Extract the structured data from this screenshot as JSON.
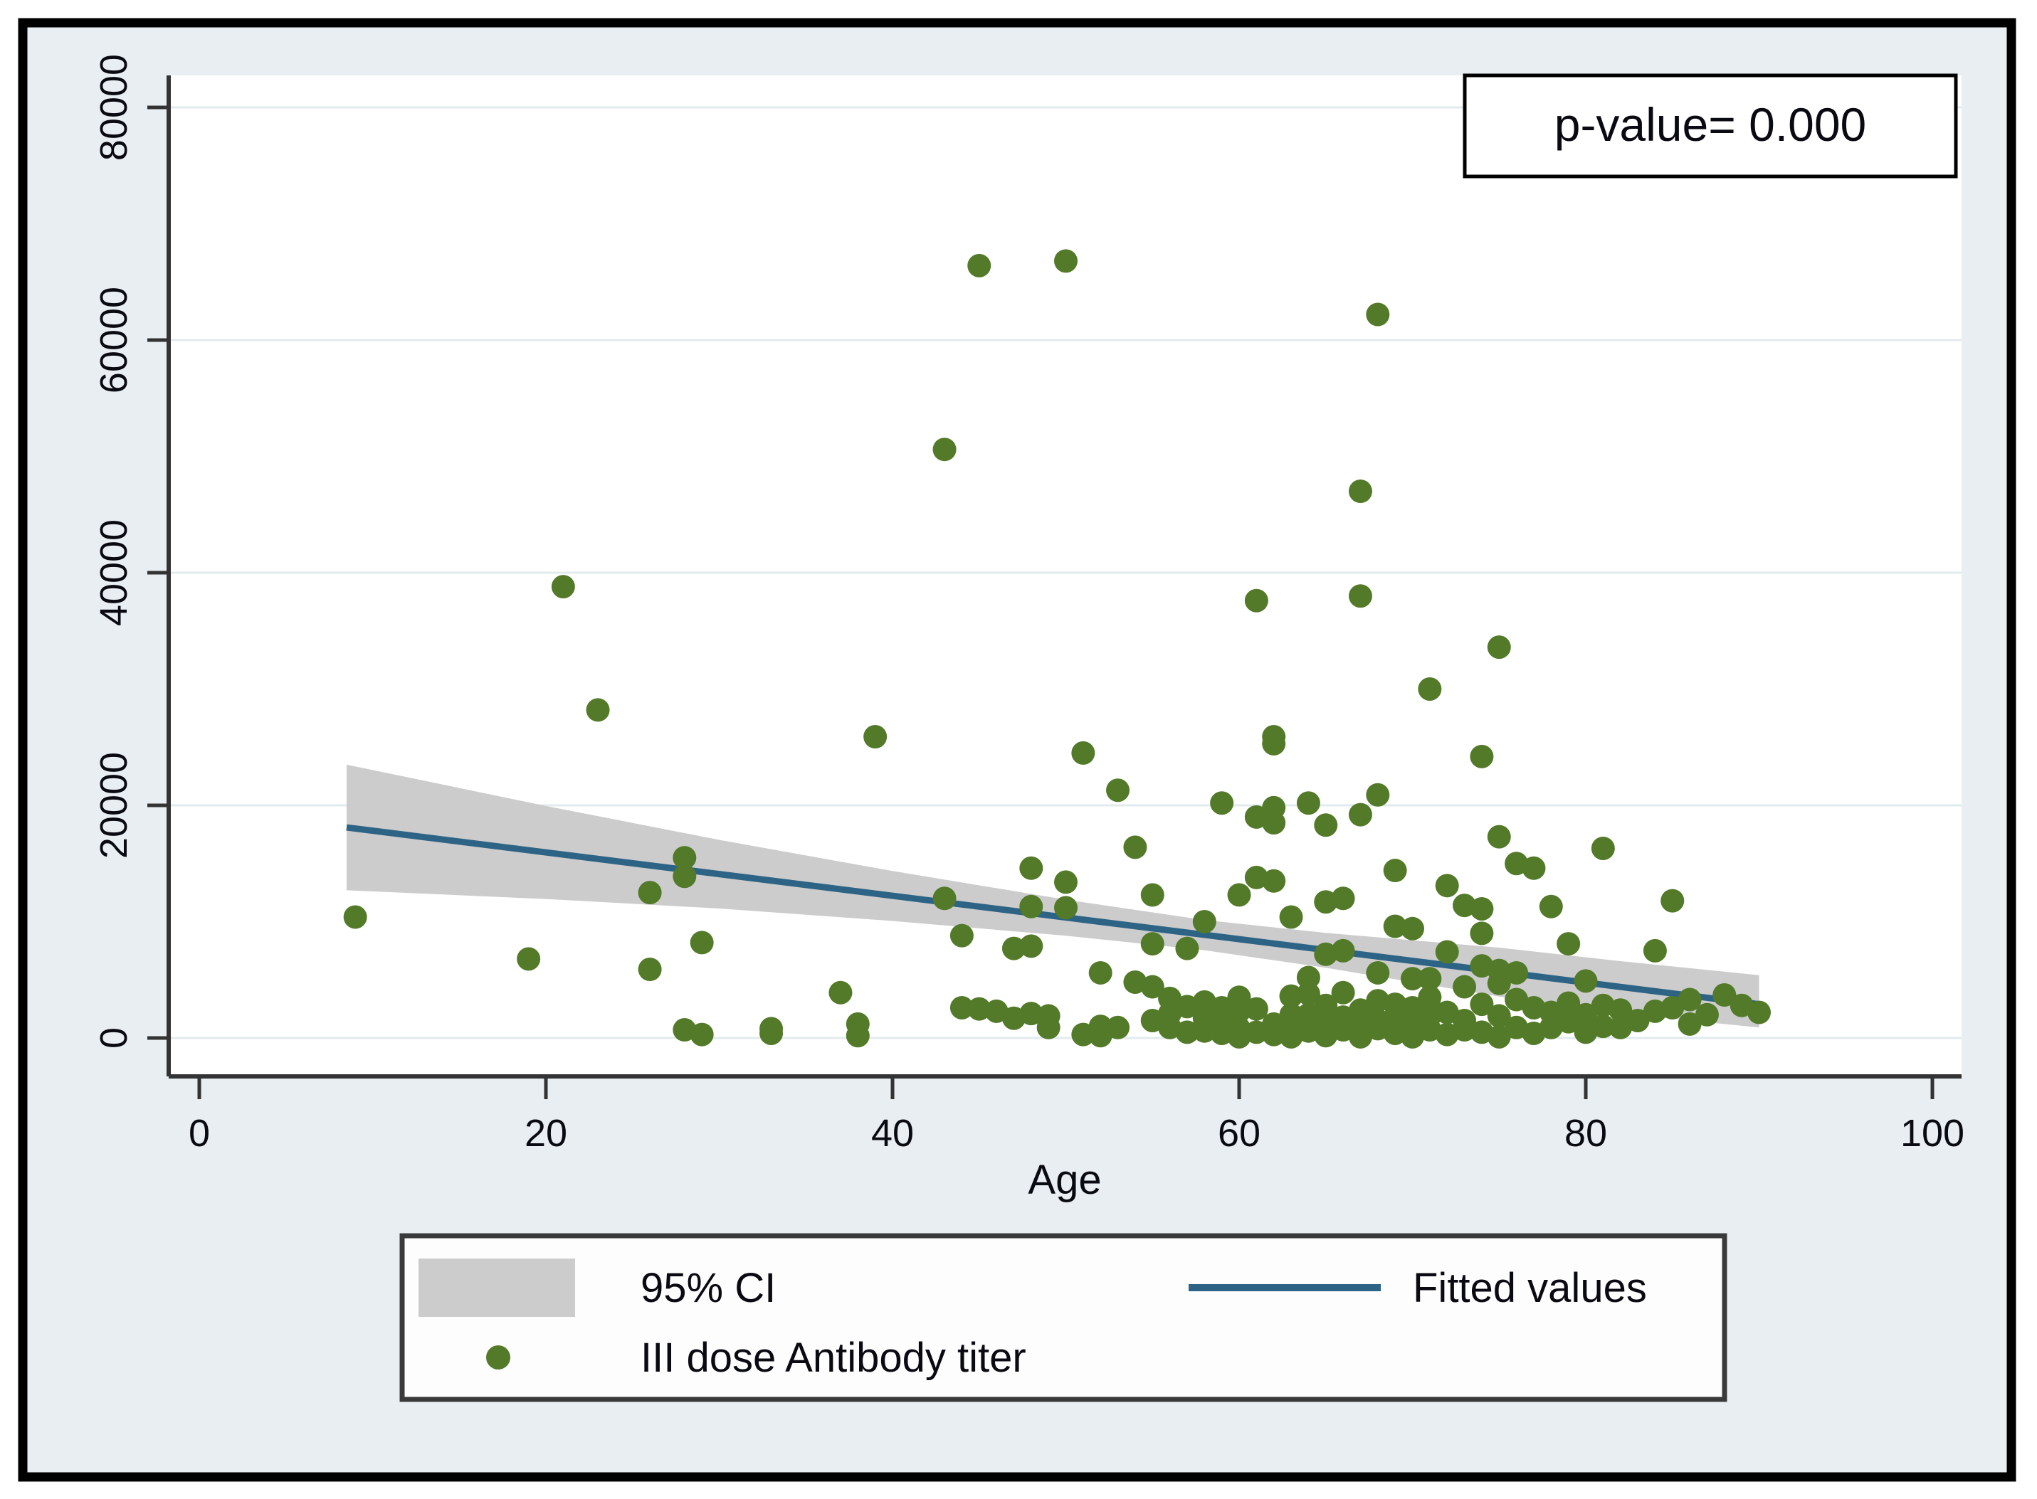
{
  "figure": {
    "p_value_label": "p-value= 0.000",
    "x_axis": {
      "label": "Age",
      "ticks": [
        0,
        20,
        40,
        60,
        80,
        100
      ]
    },
    "y_axis": {
      "ticks": [
        0,
        20000,
        40000,
        60000,
        80000
      ]
    },
    "legend": {
      "ci_label": "95% CI",
      "fit_label": "Fitted values",
      "scatter_label": "III dose Antibody titer"
    },
    "colors": {
      "background": "#e8eef1",
      "plot_background": "#ffffff",
      "gridline": "#e2ebee",
      "axis": "#333333",
      "frame": "#000000",
      "dot": "#527a28",
      "fit_line": "#2d6384",
      "ci_band": "#cccccc",
      "text": "#0a0a12",
      "legend_border": "#3a3a3a"
    }
  },
  "chart_data": {
    "type": "scatter",
    "title": "",
    "xlabel": "Age",
    "ylabel": "",
    "xlim": [
      -1.8,
      102.2
    ],
    "ylim": [
      -3300,
      83000
    ],
    "grid": true,
    "legend_position": "bottom",
    "annotations": [
      {
        "text": "p-value= 0.000",
        "position": "top-right"
      }
    ],
    "series": [
      {
        "name": "III dose Antibody titer",
        "type": "scatter",
        "points": [
          [
            9,
            10400
          ],
          [
            19,
            6800
          ],
          [
            21,
            38800
          ],
          [
            23,
            28200
          ],
          [
            26,
            12500
          ],
          [
            26,
            5900
          ],
          [
            28,
            15500
          ],
          [
            28,
            13900
          ],
          [
            29,
            8200
          ],
          [
            28,
            700
          ],
          [
            29,
            300
          ],
          [
            33,
            800
          ],
          [
            33,
            400
          ],
          [
            37,
            3900
          ],
          [
            38,
            1200
          ],
          [
            38,
            200
          ],
          [
            39,
            25900
          ],
          [
            43,
            50600
          ],
          [
            43,
            12000
          ],
          [
            44,
            8800
          ],
          [
            44,
            2600
          ],
          [
            45,
            66400
          ],
          [
            45,
            2500
          ],
          [
            46,
            2300
          ],
          [
            47,
            7700
          ],
          [
            47,
            1700
          ],
          [
            48,
            14600
          ],
          [
            48,
            11300
          ],
          [
            48,
            7900
          ],
          [
            48,
            2100
          ],
          [
            49,
            1900
          ],
          [
            49,
            900
          ],
          [
            50,
            66800
          ],
          [
            50,
            13400
          ],
          [
            50,
            11200
          ],
          [
            51,
            24500
          ],
          [
            51,
            300
          ],
          [
            52,
            5600
          ],
          [
            52,
            1000
          ],
          [
            52,
            200
          ],
          [
            53,
            21300
          ],
          [
            53,
            900
          ],
          [
            54,
            16400
          ],
          [
            54,
            4800
          ],
          [
            55,
            12300
          ],
          [
            55,
            8100
          ],
          [
            55,
            4400
          ],
          [
            55,
            1500
          ],
          [
            56,
            3400
          ],
          [
            56,
            2100
          ],
          [
            56,
            900
          ],
          [
            57,
            7700
          ],
          [
            57,
            2700
          ],
          [
            57,
            500
          ],
          [
            58,
            10000
          ],
          [
            58,
            3100
          ],
          [
            58,
            1700
          ],
          [
            58,
            600
          ],
          [
            59,
            20200
          ],
          [
            59,
            2600
          ],
          [
            59,
            1000
          ],
          [
            59,
            400
          ],
          [
            60,
            12300
          ],
          [
            60,
            3500
          ],
          [
            60,
            2300
          ],
          [
            60,
            800
          ],
          [
            60,
            100
          ],
          [
            61,
            37600
          ],
          [
            61,
            19000
          ],
          [
            61,
            13800
          ],
          [
            61,
            2500
          ],
          [
            61,
            500
          ],
          [
            62,
            25900
          ],
          [
            62,
            25300
          ],
          [
            62,
            19800
          ],
          [
            62,
            18500
          ],
          [
            62,
            13500
          ],
          [
            62,
            1200
          ],
          [
            62,
            300
          ],
          [
            63,
            10400
          ],
          [
            63,
            3600
          ],
          [
            63,
            2000
          ],
          [
            63,
            900
          ],
          [
            63,
            100
          ],
          [
            64,
            20200
          ],
          [
            64,
            5200
          ],
          [
            64,
            3800
          ],
          [
            64,
            2000
          ],
          [
            64,
            600
          ],
          [
            65,
            18300
          ],
          [
            65,
            11700
          ],
          [
            65,
            7200
          ],
          [
            65,
            2800
          ],
          [
            65,
            1300
          ],
          [
            65,
            200
          ],
          [
            66,
            12000
          ],
          [
            66,
            7500
          ],
          [
            66,
            3900
          ],
          [
            66,
            1800
          ],
          [
            66,
            700
          ],
          [
            67,
            47000
          ],
          [
            67,
            38000
          ],
          [
            67,
            19200
          ],
          [
            67,
            2400
          ],
          [
            67,
            1100
          ],
          [
            67,
            100
          ],
          [
            68,
            62200
          ],
          [
            68,
            20900
          ],
          [
            68,
            5600
          ],
          [
            68,
            3200
          ],
          [
            68,
            1500
          ],
          [
            68,
            800
          ],
          [
            69,
            14400
          ],
          [
            69,
            9600
          ],
          [
            69,
            2900
          ],
          [
            69,
            1800
          ],
          [
            69,
            400
          ],
          [
            70,
            9400
          ],
          [
            70,
            5100
          ],
          [
            70,
            2600
          ],
          [
            70,
            1000
          ],
          [
            70,
            100
          ],
          [
            71,
            30000
          ],
          [
            71,
            5100
          ],
          [
            71,
            3500
          ],
          [
            71,
            1900
          ],
          [
            71,
            700
          ],
          [
            72,
            13100
          ],
          [
            72,
            7400
          ],
          [
            72,
            2200
          ],
          [
            72,
            300
          ],
          [
            73,
            11400
          ],
          [
            73,
            4400
          ],
          [
            73,
            1500
          ],
          [
            73,
            700
          ],
          [
            74,
            24200
          ],
          [
            74,
            11100
          ],
          [
            74,
            9000
          ],
          [
            74,
            6200
          ],
          [
            74,
            2900
          ],
          [
            74,
            500
          ],
          [
            75,
            33600
          ],
          [
            75,
            17300
          ],
          [
            75,
            5800
          ],
          [
            75,
            4700
          ],
          [
            75,
            1900
          ],
          [
            75,
            100
          ],
          [
            76,
            15000
          ],
          [
            76,
            5600
          ],
          [
            76,
            3300
          ],
          [
            76,
            900
          ],
          [
            77,
            14600
          ],
          [
            77,
            2600
          ],
          [
            77,
            400
          ],
          [
            78,
            11300
          ],
          [
            78,
            2200
          ],
          [
            78,
            900
          ],
          [
            79,
            8100
          ],
          [
            79,
            3000
          ],
          [
            79,
            1400
          ],
          [
            80,
            4900
          ],
          [
            80,
            2000
          ],
          [
            80,
            500
          ],
          [
            81,
            16300
          ],
          [
            81,
            2800
          ],
          [
            81,
            1000
          ],
          [
            82,
            2400
          ],
          [
            82,
            900
          ],
          [
            83,
            1500
          ],
          [
            84,
            7500
          ],
          [
            84,
            2300
          ],
          [
            85,
            11800
          ],
          [
            85,
            2600
          ],
          [
            86,
            3300
          ],
          [
            86,
            1200
          ],
          [
            87,
            2000
          ],
          [
            88,
            3700
          ],
          [
            89,
            2800
          ],
          [
            90,
            2200
          ]
        ]
      },
      {
        "name": "Fitted values",
        "type": "line",
        "points": [
          [
            8.5,
            18100
          ],
          [
            90,
            2900
          ]
        ]
      },
      {
        "name": "95% CI",
        "type": "band",
        "points": [
          [
            8.5,
            12700,
            23500
          ],
          [
            20,
            11950,
            19950
          ],
          [
            30,
            11130,
            17030
          ],
          [
            40,
            10060,
            14360
          ],
          [
            50,
            8790,
            11890
          ],
          [
            58,
            7545,
            10145
          ],
          [
            65,
            6036,
            9036
          ],
          [
            75,
            3565,
            7765
          ],
          [
            82,
            2106,
            6606
          ],
          [
            90,
            900,
            5400
          ]
        ]
      }
    ]
  }
}
